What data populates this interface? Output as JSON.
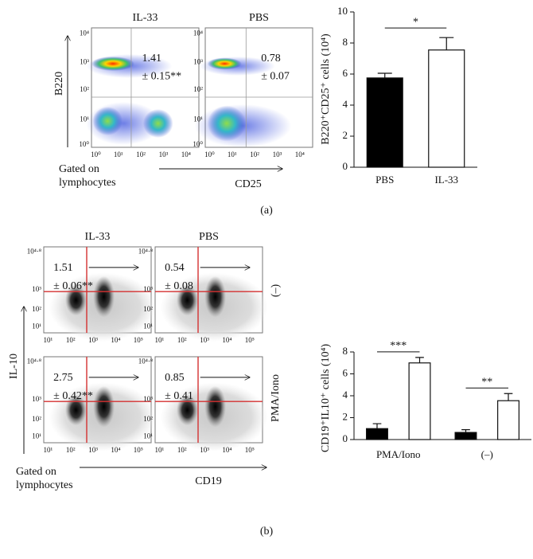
{
  "chart_data": [
    {
      "type": "bar",
      "ylabel": "B220⁺CD25⁺ cells (10⁴)",
      "categories": [
        "PBS",
        "IL-33"
      ],
      "values": [
        5.75,
        7.55
      ],
      "errors": [
        0.3,
        0.8
      ],
      "colors": [
        "#000000",
        "#ffffff"
      ],
      "ylim": [
        0,
        10
      ],
      "yticks": [
        0,
        2,
        4,
        6,
        8,
        10
      ],
      "annotations": [
        "*"
      ]
    },
    {
      "type": "grouped_bar",
      "ylabel": "CD19⁺IL10⁺ cells (10⁴)",
      "categories": [
        "PMA/Iono",
        "(–)"
      ],
      "series": [
        {
          "color": "#000000",
          "values": [
            1.0,
            0.65
          ],
          "errors": [
            0.45,
            0.25
          ]
        },
        {
          "color": "#ffffff",
          "values": [
            7.0,
            3.55
          ],
          "errors": [
            0.5,
            0.65
          ]
        }
      ],
      "ylim": [
        0,
        8
      ],
      "yticks": [
        0,
        2,
        4,
        6,
        8
      ],
      "annotations": [
        "***",
        "**"
      ]
    }
  ],
  "figure": {
    "panel_a": {
      "label": "(a)",
      "plot_titles": [
        "IL-33",
        "PBS"
      ],
      "stats": [
        [
          "1.41",
          "± 0.15**"
        ],
        [
          "0.78",
          "± 0.07"
        ]
      ],
      "y_axis_label": "B220",
      "x_axis_label": "CD25",
      "gate_note": [
        "Gated on",
        "lymphocytes"
      ],
      "xtick_labels": [
        "10⁰",
        "10¹",
        "10²",
        "10³",
        "10⁴"
      ],
      "ytick_labels": [
        "10⁴",
        "10³",
        "10²",
        "10¹",
        "10⁰"
      ]
    },
    "panel_b": {
      "label": "(b)",
      "plot_titles": [
        "IL-33",
        "PBS"
      ],
      "row_labels": [
        "(–)",
        "PMA/Iono"
      ],
      "stats": [
        [
          "1.51",
          "± 0.06**"
        ],
        [
          "0.54",
          "± 0.08"
        ],
        [
          "2.75",
          "± 0.42**"
        ],
        [
          "0.85",
          "± 0.41"
        ]
      ],
      "y_axis_label": "IL-10",
      "x_axis_label": "CD19",
      "gate_note": [
        "Gated on",
        "lymphocytes"
      ],
      "xtick_labels": [
        "10¹",
        "10²",
        "10³",
        "10⁴",
        "10⁵"
      ],
      "ytick_labels": [
        "10⁴·⁸",
        "10³",
        "10²",
        "10¹"
      ]
    }
  }
}
